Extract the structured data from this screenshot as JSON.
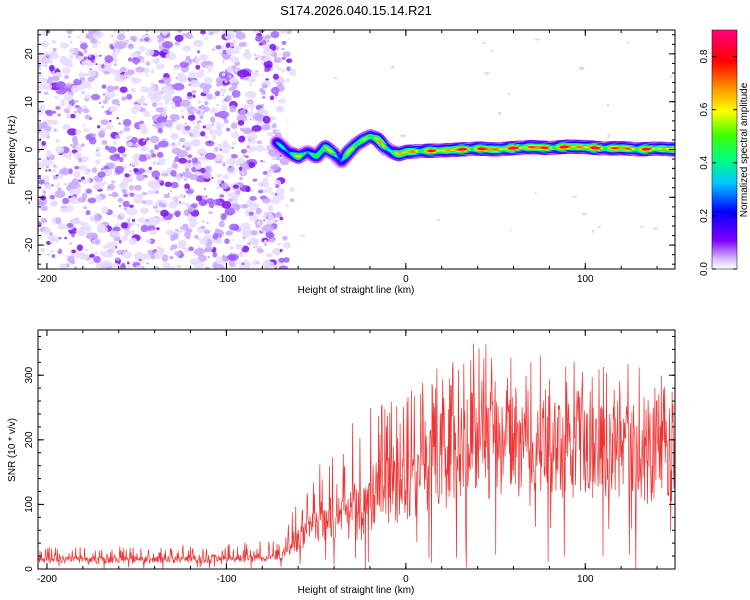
{
  "chart_data": [
    {
      "type": "heatmap",
      "title": "S174.2026.040.15.14.R21",
      "xlabel": "Height of straight line (km)",
      "ylabel": "Frequency (Hz)",
      "xlim": [
        -205,
        150
      ],
      "ylim": [
        -25,
        25
      ],
      "xticks": [
        -200,
        -100,
        0,
        100
      ],
      "yticks": [
        -20,
        -10,
        0,
        10,
        20
      ],
      "colorbar": {
        "label": "Normalized spectral amplitude",
        "range": [
          0,
          0.9
        ],
        "ticks": [
          0.0,
          0.2,
          0.4,
          0.6,
          0.8
        ],
        "colors": [
          "#ffffff",
          "#8000ff",
          "#0000ff",
          "#00ffff",
          "#00ff00",
          "#ffff00",
          "#ff8000",
          "#ff0000",
          "#ff00a0"
        ]
      },
      "noise_region_x": [
        -205,
        -62
      ],
      "ridge": {
        "x": [
          -72,
          -66,
          -60,
          -55,
          -50,
          -45,
          -40,
          -36,
          -32,
          -28,
          -24,
          -20,
          -16,
          -12,
          -8,
          -4,
          0,
          10,
          20,
          30,
          40,
          50,
          60,
          70,
          80,
          90,
          100,
          110,
          120,
          130,
          140,
          150
        ],
        "freq": [
          1.5,
          -0.5,
          -1.5,
          -0.5,
          -1.5,
          0.5,
          -1.0,
          -2.5,
          -0.5,
          1.0,
          2.0,
          2.8,
          2.2,
          0.5,
          -0.5,
          -1.0,
          -0.5,
          -0.3,
          -0.2,
          0.0,
          0.2,
          0.0,
          0.3,
          0.5,
          0.3,
          0.6,
          0.5,
          0.2,
          0.3,
          0.0,
          0.2,
          0.0
        ],
        "amp": [
          0.35,
          0.45,
          0.5,
          0.45,
          0.5,
          0.55,
          0.5,
          0.45,
          0.5,
          0.55,
          0.6,
          0.65,
          0.6,
          0.55,
          0.6,
          0.65,
          0.7,
          0.72,
          0.75,
          0.8,
          0.8,
          0.78,
          0.8,
          0.82,
          0.78,
          0.8,
          0.82,
          0.78,
          0.75,
          0.78,
          0.75,
          0.7
        ]
      }
    },
    {
      "type": "line",
      "xlabel": "Height of straight line (km)",
      "ylabel": "SNR (10 * v/v)",
      "xlim": [
        -205,
        150
      ],
      "ylim": [
        0,
        370
      ],
      "xticks": [
        -200,
        -100,
        0,
        100
      ],
      "yticks": [
        0,
        100,
        200,
        300
      ],
      "color": "#ee3333",
      "series": [
        {
          "name": "SNR",
          "x": [
            -205,
            -150,
            -100,
            -70,
            -60,
            -50,
            -40,
            -30,
            -20,
            -10,
            0,
            10,
            20,
            30,
            40,
            50,
            60,
            70,
            80,
            90,
            100,
            110,
            120,
            130,
            140,
            150
          ],
          "mean": [
            15,
            15,
            16,
            18,
            40,
            90,
            80,
            75,
            120,
            135,
            150,
            185,
            220,
            235,
            245,
            240,
            235,
            240,
            235,
            235,
            230,
            228,
            225,
            222,
            220,
            215
          ],
          "max": [
            35,
            35,
            40,
            45,
            110,
            190,
            180,
            250,
            250,
            260,
            280,
            300,
            320,
            335,
            355,
            345,
            335,
            345,
            340,
            330,
            330,
            320,
            320,
            315,
            310,
            300
          ]
        }
      ]
    }
  ]
}
